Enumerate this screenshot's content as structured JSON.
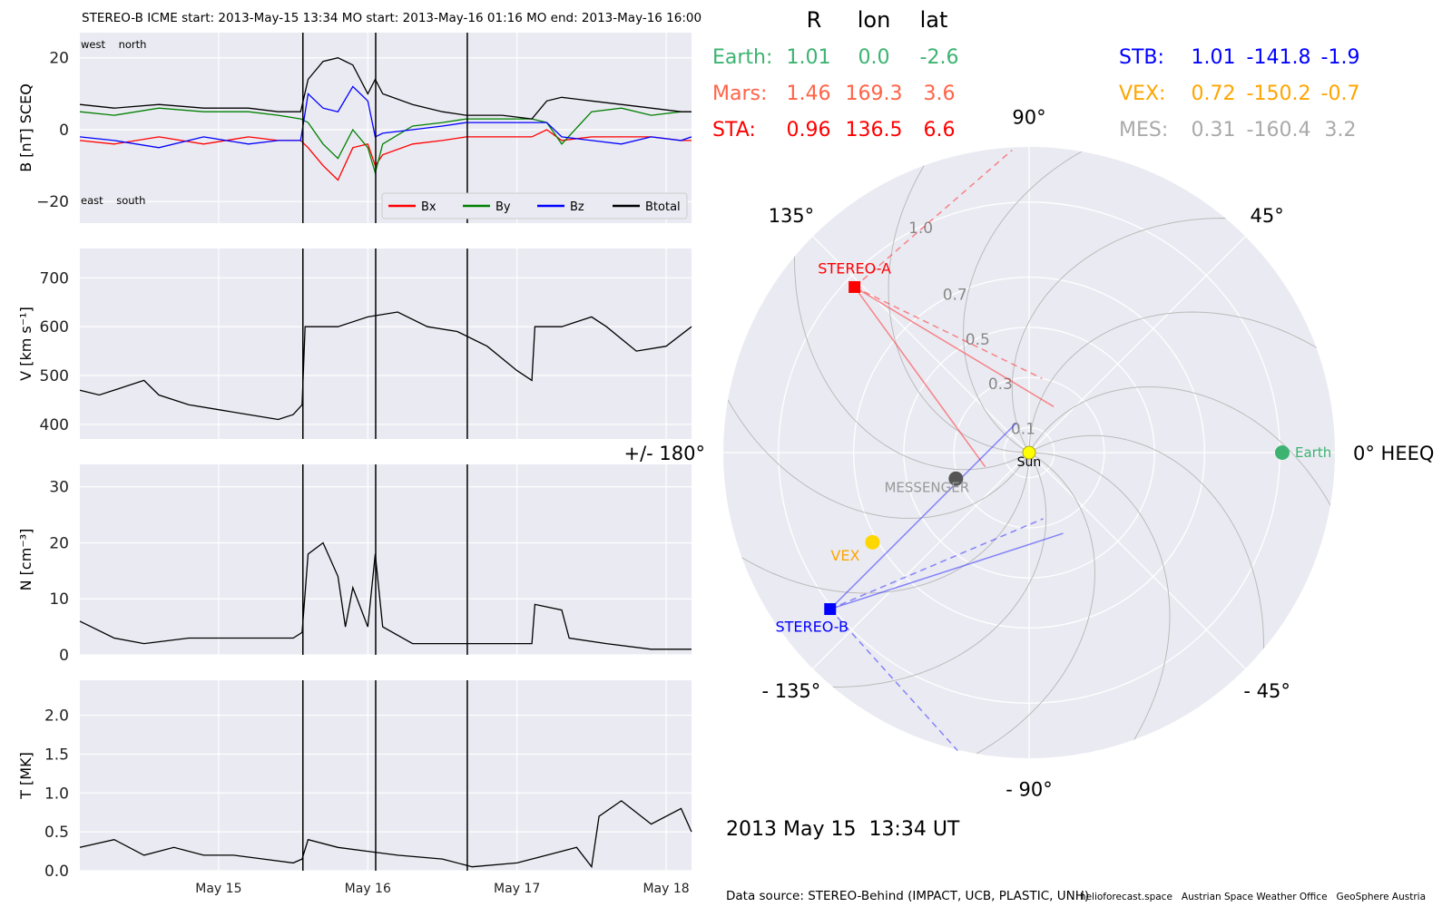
{
  "header": {
    "title": "STEREO-B    ICME start: 2013-May-15 13:34   MO start: 2013-May-16 01:16   MO end: 2013-May-16 16:00"
  },
  "time_axis": {
    "tick_labels": [
      "May 15",
      "May 16",
      "May 17",
      "May 18"
    ],
    "tick_days": [
      15,
      16,
      17,
      18
    ],
    "range_days": [
      14.07,
      18.17
    ]
  },
  "events": {
    "lines_days": [
      15.565,
      16.053,
      16.667
    ],
    "labels": [
      "ICME start: 2013-May-15 13:34",
      "MO start: 2013-May-16 01:16",
      "MO end: 2013-May-16 16:00"
    ]
  },
  "chart_data": [
    {
      "type": "line",
      "id": "magnetic-field",
      "ylabel": "B [nT] SCEQ",
      "ylim": [
        -26,
        27
      ],
      "yticks": [
        20,
        0,
        -20
      ],
      "ytick_labels": [
        "20",
        "0",
        "−20"
      ],
      "grid": true,
      "legend": {
        "placement": "bottom-right",
        "entries": [
          "Bx",
          "By",
          "Bz",
          "Btotal"
        ]
      },
      "annotations": {
        "top_left": "west    north",
        "bottom_left": "east    south"
      },
      "x": [
        14.07,
        14.3,
        14.6,
        14.9,
        15.2,
        15.4,
        15.55,
        15.6,
        15.7,
        15.8,
        15.9,
        16.0,
        16.05,
        16.1,
        16.3,
        16.5,
        16.66,
        16.9,
        17.1,
        17.2,
        17.3,
        17.5,
        17.7,
        17.9,
        18.1,
        18.17
      ],
      "series": [
        {
          "name": "Bx",
          "color": "#ff0000",
          "values": [
            -3,
            -4,
            -2,
            -4,
            -2,
            -3,
            -3,
            -5,
            -10,
            -14,
            -5,
            -4,
            -10,
            -7,
            -4,
            -3,
            -2,
            -2,
            -2,
            0,
            -3,
            -2,
            -2,
            -2,
            -3,
            -3
          ]
        },
        {
          "name": "By",
          "color": "#008000",
          "values": [
            5,
            4,
            6,
            5,
            5,
            4,
            3,
            2,
            -4,
            -8,
            0,
            -5,
            -12,
            -4,
            1,
            2,
            3,
            3,
            3,
            2,
            -4,
            5,
            6,
            4,
            5,
            5
          ]
        },
        {
          "name": "Bz",
          "color": "#0000ff",
          "values": [
            -2,
            -3,
            -5,
            -2,
            -4,
            -3,
            -3,
            10,
            6,
            5,
            12,
            8,
            -2,
            -1,
            0,
            1,
            2,
            2,
            2,
            2,
            -2,
            -3,
            -4,
            -2,
            -3,
            -2
          ]
        },
        {
          "name": "Btotal",
          "color": "#000000",
          "values": [
            7,
            6,
            7,
            6,
            6,
            5,
            5,
            14,
            19,
            20,
            18,
            10,
            14,
            10,
            7,
            5,
            4,
            4,
            3,
            8,
            9,
            8,
            7,
            6,
            5,
            5
          ]
        }
      ]
    },
    {
      "type": "line",
      "id": "speed",
      "ylabel": "V [km s⁻¹]",
      "ylim": [
        370,
        760
      ],
      "yticks": [
        700,
        600,
        500,
        400
      ],
      "ytick_labels": [
        "700",
        "600",
        "500",
        "400"
      ],
      "grid": true,
      "color": "#000000",
      "x": [
        14.07,
        14.2,
        14.4,
        14.5,
        14.6,
        14.8,
        15.0,
        15.2,
        15.4,
        15.5,
        15.56,
        15.58,
        15.8,
        16.0,
        16.2,
        16.4,
        16.6,
        16.8,
        17.0,
        17.1,
        17.12,
        17.3,
        17.5,
        17.6,
        17.8,
        18.0,
        18.17
      ],
      "values": [
        470,
        460,
        480,
        490,
        460,
        440,
        430,
        420,
        410,
        420,
        440,
        600,
        600,
        620,
        630,
        600,
        590,
        560,
        510,
        490,
        600,
        600,
        620,
        600,
        550,
        560,
        600
      ]
    },
    {
      "type": "line",
      "id": "density",
      "ylabel": "N [cm⁻³]",
      "ylim": [
        0,
        34
      ],
      "yticks": [
        30,
        20,
        10,
        0
      ],
      "ytick_labels": [
        "30",
        "20",
        "10",
        "0"
      ],
      "grid": true,
      "color": "#000000",
      "x": [
        14.07,
        14.3,
        14.5,
        14.8,
        15.0,
        15.3,
        15.5,
        15.56,
        15.6,
        15.7,
        15.8,
        15.85,
        15.9,
        16.0,
        16.05,
        16.1,
        16.3,
        16.6,
        16.8,
        17.0,
        17.1,
        17.12,
        17.3,
        17.35,
        17.6,
        17.9,
        18.17
      ],
      "values": [
        6,
        3,
        2,
        3,
        3,
        3,
        3,
        4,
        18,
        20,
        14,
        5,
        12,
        5,
        18,
        5,
        2,
        2,
        2,
        2,
        2,
        9,
        8,
        3,
        2,
        1,
        1
      ]
    },
    {
      "type": "line",
      "id": "temperature",
      "ylabel": "T [MK]",
      "ylim": [
        0,
        2.45
      ],
      "yticks": [
        2.0,
        1.5,
        1.0,
        0.5,
        0.0
      ],
      "ytick_labels": [
        "2.0",
        "1.5",
        "1.0",
        "0.5",
        "0.0"
      ],
      "grid": true,
      "color": "#000000",
      "x": [
        14.07,
        14.3,
        14.5,
        14.7,
        14.9,
        15.1,
        15.3,
        15.5,
        15.56,
        15.6,
        15.8,
        16.0,
        16.2,
        16.5,
        16.7,
        17.0,
        17.2,
        17.4,
        17.5,
        17.55,
        17.7,
        17.9,
        18.1,
        18.17
      ],
      "values": [
        0.3,
        0.4,
        0.2,
        0.3,
        0.2,
        0.2,
        0.15,
        0.1,
        0.15,
        0.4,
        0.3,
        0.25,
        0.2,
        0.15,
        0.05,
        0.1,
        0.2,
        0.3,
        0.05,
        0.7,
        0.9,
        0.6,
        0.8,
        0.5
      ]
    },
    {
      "type": "scatter",
      "id": "heliosphere-polar",
      "angle_labels": [
        {
          "deg": 0,
          "text": "0° HEEQ"
        },
        {
          "deg": 45,
          "text": "45°"
        },
        {
          "deg": 90,
          "text": "90°"
        },
        {
          "deg": 135,
          "text": "135°"
        },
        {
          "deg": 180,
          "text": "+/- 180°"
        },
        {
          "deg": -135,
          "text": "- 135°"
        },
        {
          "deg": -90,
          "text": "- 90°"
        },
        {
          "deg": -45,
          "text": "- 45°"
        }
      ],
      "radial_ticks": [
        0.1,
        0.3,
        0.5,
        0.7,
        1.0
      ],
      "radial_tick_labels": [
        "0.1",
        "0.3",
        "0.5",
        "0.7",
        "1.0"
      ],
      "r_max": 1.22,
      "bodies": [
        {
          "name": "Sun",
          "r": 0.0,
          "lon": 0.0,
          "color": "#ffff00",
          "shape": "circle"
        },
        {
          "name": "Earth",
          "r": 1.01,
          "lon": 0.0,
          "color": "#3cb371",
          "shape": "circle"
        },
        {
          "name": "STEREO-A",
          "r": 0.96,
          "lon": 136.5,
          "color": "#ff0000",
          "shape": "square"
        },
        {
          "name": "STEREO-B",
          "r": 1.01,
          "lon": -141.8,
          "color": "#0000ff",
          "shape": "square"
        },
        {
          "name": "VEX",
          "r": 0.72,
          "lon": -150.2,
          "color": "#ffd700",
          "shape": "circle"
        },
        {
          "name": "MESSENGER",
          "r": 0.31,
          "lon": -160.4,
          "color": "#555555",
          "shape": "circle"
        }
      ],
      "spiral_count": 12
    }
  ],
  "position_table": {
    "headers": [
      "R",
      "lon",
      "lat"
    ],
    "rows": [
      {
        "label": "Earth:",
        "R": "1.01",
        "lon": "0.0",
        "lat": "-2.6",
        "color": "#3cb371"
      },
      {
        "label": "Mars:",
        "R": "1.46",
        "lon": "169.3",
        "lat": "3.6",
        "color": "#ff6347"
      },
      {
        "label": "STA:",
        "R": "0.96",
        "lon": "136.5",
        "lat": "6.6",
        "color": "#ff0000"
      },
      {
        "label": "STB:",
        "R": "1.01",
        "lon": "-141.8",
        "lat": "-1.9",
        "color": "#0000ff"
      },
      {
        "label": "VEX:",
        "R": "0.72",
        "lon": "-150.2",
        "lat": "-0.7",
        "color": "#ffa500"
      },
      {
        "label": "MES:",
        "R": "0.31",
        "lon": "-160.4",
        "lat": "3.2",
        "color": "#aaaaaa"
      }
    ]
  },
  "timestamp": "2013 May 15  13:34 UT",
  "footer": {
    "source": "Data source: STEREO-Behind (IMPACT, UCB, PLASTIC, UNH)",
    "credits": "helioforecast.space   Austrian Space Weather Office   GeoSphere Austria"
  }
}
